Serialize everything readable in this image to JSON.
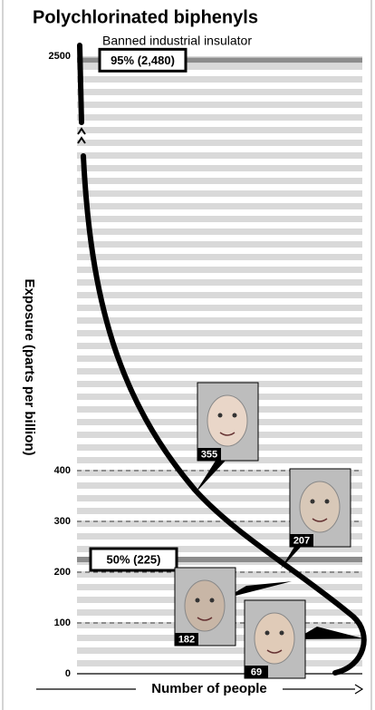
{
  "chart_data": {
    "type": "distribution",
    "title": "Polychlorinated biphenyls",
    "subtitle": "Banned industrial insulator",
    "y_label": "Exposure (parts per billion)",
    "x_label": "Number of people",
    "ylim": [
      0,
      2500
    ],
    "yticks": [
      0,
      100,
      200,
      300,
      400,
      2500
    ],
    "grid": true,
    "percentiles": [
      {
        "label": "95% (2,480)",
        "value": 2480
      },
      {
        "label": "50% (225)",
        "value": 225
      }
    ],
    "people": [
      {
        "value": 355
      },
      {
        "value": 207
      },
      {
        "value": 182
      },
      {
        "value": 69
      }
    ]
  }
}
